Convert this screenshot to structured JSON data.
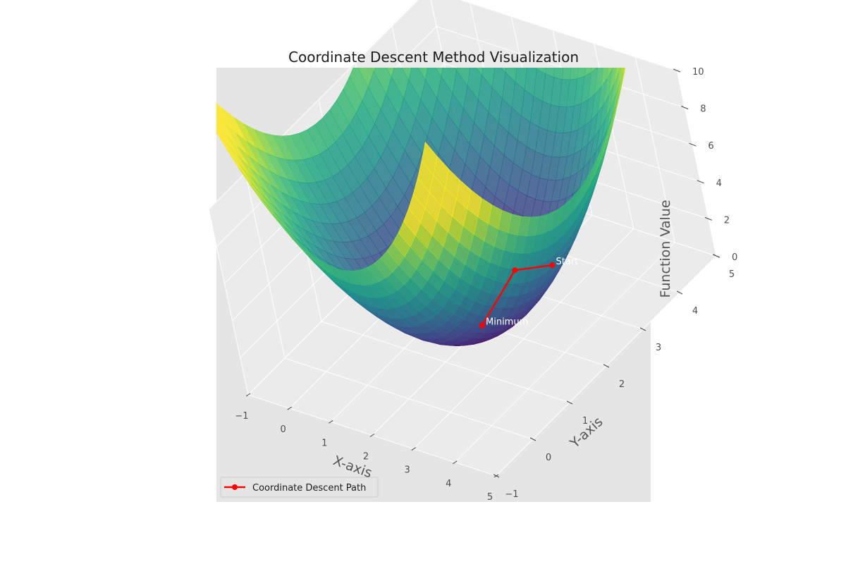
{
  "chart_data": {
    "type": "surface3d",
    "title": "Coordinate Descent Method Visualization",
    "xlabel": "X-axis",
    "ylabel": "Y-axis",
    "zlabel": "Function Value",
    "xlim": [
      -1,
      5
    ],
    "ylim": [
      -1,
      5
    ],
    "zlim": [
      0,
      10
    ],
    "x_ticks": [
      -1,
      0,
      1,
      2,
      3,
      4,
      5
    ],
    "y_ticks": [
      -1,
      0,
      1,
      2,
      3,
      4,
      5
    ],
    "z_ticks": [
      0,
      2,
      4,
      6,
      8,
      10
    ],
    "tick_labels": {
      "x": [
        "−1",
        "0",
        "1",
        "2",
        "3",
        "4",
        "5"
      ],
      "y": [
        "−1",
        "0",
        "1",
        "2",
        "3",
        "4",
        "5"
      ],
      "z": [
        "0",
        "2",
        "4",
        "6",
        "8",
        "10"
      ]
    },
    "surface": {
      "colormap": "viridis",
      "center": [
        2,
        2
      ]
    },
    "path": {
      "name": "Coordinate Descent Path",
      "color": "#ff0000",
      "points": [
        {
          "x": 3.0,
          "y": 3.0,
          "z": 2.0
        },
        {
          "x": 2.0,
          "y": 3.0,
          "z": 1.0
        },
        {
          "x": 2.0,
          "y": 2.0,
          "z": 0.0
        }
      ]
    },
    "annotations": [
      {
        "text": "Start",
        "point_index": 0
      },
      {
        "text": "Minimum",
        "point_index": 2
      }
    ],
    "legend_position": "lower-left",
    "grid": true,
    "colors": {
      "axes_background": "#e5e5e5",
      "pane": "#ebebeb",
      "grid": "#ffffff",
      "path": "#ff0000"
    }
  }
}
